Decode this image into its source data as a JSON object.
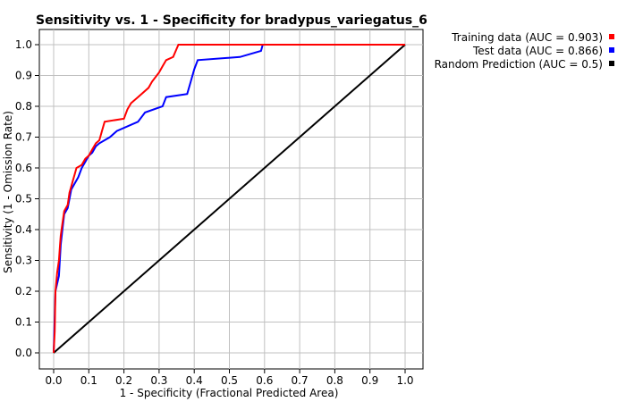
{
  "chart_data": {
    "type": "line",
    "title": "Sensitivity vs. 1 - Specificity for bradypus_variegatus_6",
    "xlabel": "1 - Specificity  (Fractional Predicted Area)",
    "ylabel": "Sensitivity  (1 - Omission Rate)",
    "xlim": [
      0,
      1
    ],
    "ylim": [
      0,
      1
    ],
    "grid": true,
    "legend_position": "top-right",
    "x_ticks": [
      "0.0",
      "0.1",
      "0.2",
      "0.3",
      "0.4",
      "0.5",
      "0.6",
      "0.7",
      "0.8",
      "0.9",
      "1.0"
    ],
    "y_ticks": [
      "0.0",
      "0.1",
      "0.2",
      "0.3",
      "0.4",
      "0.5",
      "0.6",
      "0.7",
      "0.8",
      "0.9",
      "1.0"
    ],
    "series": [
      {
        "name": "Training data (AUC = 0.903)",
        "color": "#ff0000",
        "points": [
          [
            0,
            0
          ],
          [
            0.003,
            0.07
          ],
          [
            0.005,
            0.2
          ],
          [
            0.01,
            0.26
          ],
          [
            0.015,
            0.3
          ],
          [
            0.018,
            0.35
          ],
          [
            0.02,
            0.38
          ],
          [
            0.025,
            0.42
          ],
          [
            0.03,
            0.46
          ],
          [
            0.04,
            0.48
          ],
          [
            0.045,
            0.52
          ],
          [
            0.05,
            0.54
          ],
          [
            0.055,
            0.56
          ],
          [
            0.06,
            0.58
          ],
          [
            0.065,
            0.6
          ],
          [
            0.08,
            0.61
          ],
          [
            0.09,
            0.63
          ],
          [
            0.1,
            0.64
          ],
          [
            0.11,
            0.66
          ],
          [
            0.12,
            0.68
          ],
          [
            0.13,
            0.69
          ],
          [
            0.14,
            0.73
          ],
          [
            0.145,
            0.75
          ],
          [
            0.2,
            0.76
          ],
          [
            0.21,
            0.79
          ],
          [
            0.22,
            0.81
          ],
          [
            0.24,
            0.83
          ],
          [
            0.27,
            0.86
          ],
          [
            0.28,
            0.88
          ],
          [
            0.3,
            0.91
          ],
          [
            0.31,
            0.93
          ],
          [
            0.32,
            0.95
          ],
          [
            0.34,
            0.96
          ],
          [
            0.355,
            1.0
          ],
          [
            1.0,
            1.0
          ]
        ]
      },
      {
        "name": "Test data (AUC = 0.866)",
        "color": "#0000ff",
        "points": [
          [
            0,
            0
          ],
          [
            0.005,
            0.2
          ],
          [
            0.015,
            0.25
          ],
          [
            0.02,
            0.35
          ],
          [
            0.025,
            0.4
          ],
          [
            0.03,
            0.45
          ],
          [
            0.04,
            0.47
          ],
          [
            0.045,
            0.5
          ],
          [
            0.05,
            0.53
          ],
          [
            0.06,
            0.55
          ],
          [
            0.07,
            0.57
          ],
          [
            0.08,
            0.6
          ],
          [
            0.09,
            0.62
          ],
          [
            0.1,
            0.64
          ],
          [
            0.11,
            0.65
          ],
          [
            0.12,
            0.67
          ],
          [
            0.13,
            0.68
          ],
          [
            0.16,
            0.7
          ],
          [
            0.18,
            0.72
          ],
          [
            0.24,
            0.75
          ],
          [
            0.26,
            0.78
          ],
          [
            0.31,
            0.8
          ],
          [
            0.32,
            0.83
          ],
          [
            0.38,
            0.84
          ],
          [
            0.39,
            0.88
          ],
          [
            0.4,
            0.92
          ],
          [
            0.41,
            0.95
          ],
          [
            0.53,
            0.96
          ],
          [
            0.59,
            0.98
          ],
          [
            0.595,
            1.0
          ],
          [
            1.0,
            1.0
          ]
        ]
      },
      {
        "name": "Random Prediction (AUC = 0.5)",
        "color": "#000000",
        "points": [
          [
            0,
            0
          ],
          [
            1,
            1
          ]
        ]
      }
    ]
  }
}
